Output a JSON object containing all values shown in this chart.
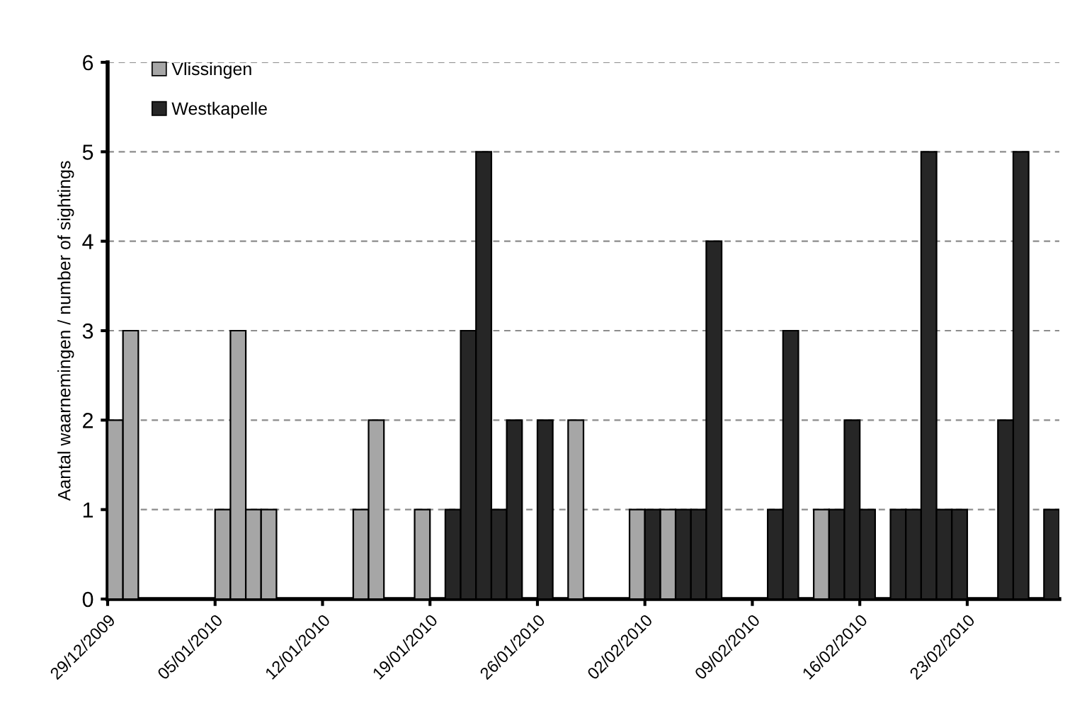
{
  "chart_data": {
    "type": "bar",
    "ylabel": "Aantal waarnemingen / number of sightings",
    "series": [
      {
        "name": "Vlissingen",
        "color": "#a6a6a6",
        "x": [
          "2009-12-29",
          "2009-12-30",
          "2010-01-05",
          "2010-01-06",
          "2010-01-07",
          "2010-01-08",
          "2010-01-14",
          "2010-01-15",
          "2010-01-18",
          "2010-01-28",
          "2010-02-01",
          "2010-02-03",
          "2010-02-13"
        ],
        "values": [
          2,
          3,
          1,
          3,
          1,
          1,
          1,
          2,
          1,
          2,
          1,
          1,
          1
        ]
      },
      {
        "name": "Westkapelle",
        "color": "#262626",
        "x": [
          "2010-01-20",
          "2010-01-21",
          "2010-01-22",
          "2010-01-23",
          "2010-01-24",
          "2010-01-26",
          "2010-02-02",
          "2010-02-04",
          "2010-02-05",
          "2010-02-06",
          "2010-02-10",
          "2010-02-11",
          "2010-02-14",
          "2010-02-15",
          "2010-02-16",
          "2010-02-18",
          "2010-02-19",
          "2010-02-20",
          "2010-02-21",
          "2010-02-22",
          "2010-02-25",
          "2010-02-26",
          "2010-02-28"
        ],
        "values": [
          1,
          3,
          5,
          1,
          2,
          2,
          1,
          1,
          1,
          4,
          1,
          3,
          1,
          2,
          1,
          1,
          1,
          5,
          1,
          1,
          2,
          5,
          1
        ]
      }
    ],
    "xlim": [
      "2009-12-29",
      "2010-03-01"
    ],
    "xticks": [
      {
        "value": "2009-12-29",
        "label": "29/12/2009"
      },
      {
        "value": "2010-01-05",
        "label": "05/01/2010"
      },
      {
        "value": "2010-01-12",
        "label": "12/01/2010"
      },
      {
        "value": "2010-01-19",
        "label": "19/01/2010"
      },
      {
        "value": "2010-01-26",
        "label": "26/01/2010"
      },
      {
        "value": "2010-02-02",
        "label": "02/02/2010"
      },
      {
        "value": "2010-02-09",
        "label": "09/02/2010"
      },
      {
        "value": "2010-02-16",
        "label": "16/02/2010"
      },
      {
        "value": "2010-02-23",
        "label": "23/02/2010"
      }
    ],
    "ylim": [
      0,
      6
    ],
    "yticks": [
      0,
      1,
      2,
      3,
      4,
      5,
      6
    ],
    "grid": "y",
    "legend": "top left"
  }
}
